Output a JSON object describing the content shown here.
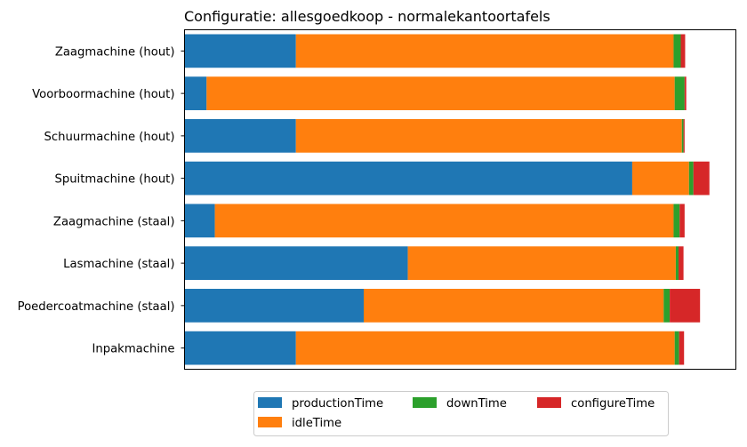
{
  "chart_data": {
    "type": "bar",
    "orientation": "horizontal",
    "stacked": true,
    "title": "Configuratie: allesgoedkoop - normalekantoortafels",
    "xlabel": "",
    "ylabel": "",
    "x_ticks_shown": false,
    "grid": false,
    "legend_position": "bottom-center",
    "categories": [
      "Zaagmachine (hout)",
      "Voorboormachine (hout)",
      "Schuurmachine (hout)",
      "Spuitmachine (hout)",
      "Zaagmachine (staal)",
      "Lasmachine (staal)",
      "Poedercoatmachine (staal)",
      "Inpakmachine"
    ],
    "xlim": [
      0,
      100
    ],
    "series": [
      {
        "name": "productionTime",
        "color": "#1f77b4",
        "values": [
          20.2,
          4.0,
          20.2,
          81.2,
          5.5,
          40.5,
          32.5,
          20.2
        ]
      },
      {
        "name": "idleTime",
        "color": "#ff7f0e",
        "values": [
          68.5,
          84.9,
          70.0,
          10.3,
          83.2,
          48.6,
          54.4,
          68.7
        ]
      },
      {
        "name": "downTime",
        "color": "#2ca02c",
        "values": [
          1.3,
          1.8,
          0.3,
          0.8,
          1.1,
          0.5,
          1.1,
          0.8
        ]
      },
      {
        "name": "configureTime",
        "color": "#d62728",
        "values": [
          0.8,
          0.3,
          0.2,
          2.9,
          0.9,
          0.9,
          5.5,
          0.9
        ]
      }
    ]
  }
}
